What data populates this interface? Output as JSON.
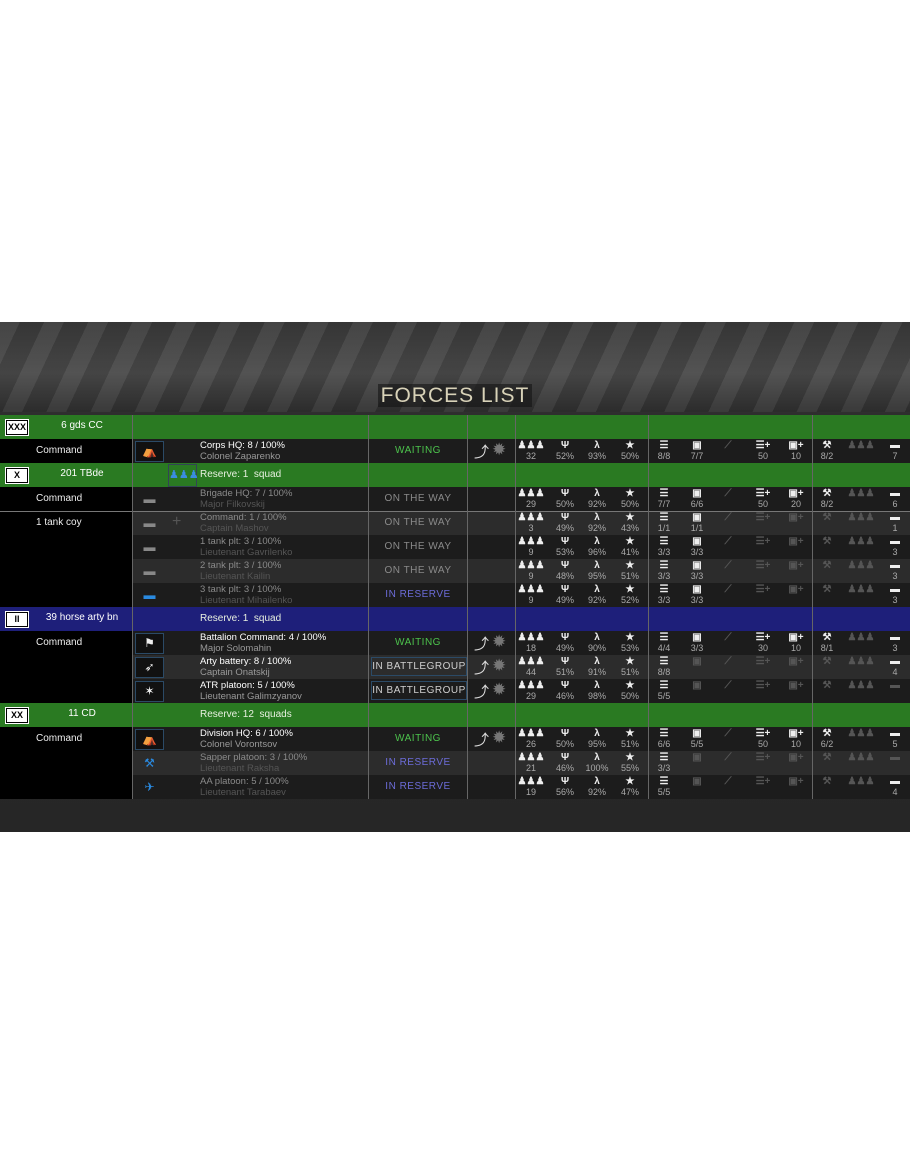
{
  "title": "FORCES LIST",
  "colors": {
    "green_header": "#2a7a22",
    "blue_header": "#1e1f7a",
    "waiting": "#4cc24c",
    "in_reserve": "#6c6cd8",
    "on_the_way": "#8a8a8a"
  },
  "stat_icons": [
    "men-icon",
    "morale-icon",
    "fatigue-icon",
    "experience-star-icon",
    "ammo-list-icon",
    "fuel-can-icon",
    "weapon-icon",
    "ammo-supply-icon",
    "fuel-supply-icon",
    "tools-icon",
    "reinforcement-men-icon",
    "truck-icon"
  ],
  "rows": [
    {
      "type": "header",
      "color": "green",
      "symbol": "XXX",
      "group": "6 gds CC",
      "reserve": ""
    },
    {
      "type": "unit",
      "left": "Command",
      "icon": "hq-tent-icon",
      "name": "Corps HQ: 8 / 100%",
      "officer": "Colonel Zaparenko",
      "status": "WAITING",
      "status_kind": "waiting",
      "actions": true,
      "dim": false,
      "stats": [
        "32",
        "52%",
        "93%",
        "50%",
        "8/8",
        "7/7",
        "",
        "50",
        "10",
        "8/2",
        "",
        "7"
      ]
    },
    {
      "type": "header",
      "color": "green",
      "symbol": "X",
      "group": "201 TBde",
      "reserve": "Reserve: 1  squad",
      "reserve_icon": true
    },
    {
      "type": "unit",
      "left": "Command",
      "icon": "tank-icon",
      "name": "Brigade HQ: 7 / 100%",
      "officer": "Major Filkovskij",
      "status": "ON THE WAY",
      "status_kind": "ontheway",
      "actions": false,
      "dim": true,
      "stats": [
        "29",
        "50%",
        "92%",
        "50%",
        "7/7",
        "6/6",
        "",
        "50",
        "20",
        "8/2",
        "",
        "6"
      ]
    },
    {
      "type": "unit",
      "left": "1 tank coy",
      "icon": "tank-icon",
      "plus": true,
      "name": "Command: 1 / 100%",
      "officer": "Captain Mashov",
      "status": "ON THE WAY",
      "status_kind": "ontheway",
      "actions": false,
      "dim": true,
      "stats": [
        "3",
        "49%",
        "92%",
        "43%",
        "1/1",
        "1/1",
        "",
        "",
        "",
        "",
        "",
        "1"
      ]
    },
    {
      "type": "unit",
      "left": "",
      "icon": "tank-icon",
      "name": "1 tank plt: 3 / 100%",
      "officer": "Lieutenant Gavrilenko",
      "status": "ON THE WAY",
      "status_kind": "ontheway",
      "actions": false,
      "dim": true,
      "stats": [
        "9",
        "53%",
        "96%",
        "41%",
        "3/3",
        "3/3",
        "",
        "",
        "",
        "",
        "",
        "3"
      ]
    },
    {
      "type": "unit",
      "left": "",
      "icon": "tank-icon",
      "name": "2 tank plt: 3 / 100%",
      "officer": "Lieutenant Kailin",
      "status": "ON THE WAY",
      "status_kind": "ontheway",
      "actions": false,
      "dim": true,
      "stats": [
        "9",
        "48%",
        "95%",
        "51%",
        "3/3",
        "3/3",
        "",
        "",
        "",
        "",
        "",
        "3"
      ]
    },
    {
      "type": "unit",
      "left": "",
      "icon": "tank-icon",
      "icon_blue": true,
      "name": "3 tank plt: 3 / 100%",
      "officer": "Lieutenant Mihailenko",
      "status": "IN RESERVE",
      "status_kind": "reserve",
      "actions": false,
      "dim": true,
      "stats": [
        "9",
        "49%",
        "92%",
        "52%",
        "3/3",
        "3/3",
        "",
        "",
        "",
        "",
        "",
        "3"
      ]
    },
    {
      "type": "header",
      "color": "blue",
      "symbol": "II",
      "group": "39 horse arty bn",
      "reserve": "Reserve: 1  squad"
    },
    {
      "type": "unit",
      "left": "Command",
      "icon": "command-flag-icon",
      "name": "Battalion Command: 4 / 100%",
      "officer": "Major Solomahin",
      "status": "WAITING",
      "status_kind": "waiting",
      "actions": true,
      "dim": false,
      "stats": [
        "18",
        "49%",
        "90%",
        "53%",
        "4/4",
        "3/3",
        "",
        "30",
        "10",
        "8/1",
        "",
        "3"
      ]
    },
    {
      "type": "unit",
      "left": "",
      "icon": "artillery-gun-icon",
      "name": "Arty battery: 8 / 100%",
      "officer": "Captain Onatskij",
      "status": "IN BATTLEGROUP",
      "status_kind": "battlegroup",
      "actions": true,
      "dim": false,
      "stats": [
        "44",
        "51%",
        "91%",
        "51%",
        "8/8",
        "",
        "",
        "",
        "",
        "",
        "",
        "4"
      ]
    },
    {
      "type": "unit",
      "left": "",
      "icon": "anti-tank-rifle-icon",
      "name": "ATR platoon: 5 / 100%",
      "officer": "Lieutenant Galimzyanov",
      "status": "IN BATTLEGROUP",
      "status_kind": "battlegroup",
      "actions": true,
      "dim": false,
      "stats": [
        "29",
        "46%",
        "98%",
        "50%",
        "5/5",
        "",
        "",
        "",
        "",
        "",
        "",
        ""
      ]
    },
    {
      "type": "header",
      "color": "green",
      "symbol": "XX",
      "group": "11 CD",
      "reserve": "Reserve: 12  squads"
    },
    {
      "type": "unit",
      "left": "Command",
      "icon": "hq-tent-icon",
      "name": "Division HQ: 6 / 100%",
      "officer": "Colonel Vorontsov",
      "status": "WAITING",
      "status_kind": "waiting",
      "actions": true,
      "dim": false,
      "stats": [
        "26",
        "50%",
        "95%",
        "51%",
        "6/6",
        "5/5",
        "",
        "50",
        "10",
        "6/2",
        "",
        "5"
      ]
    },
    {
      "type": "unit",
      "left": "",
      "icon": "sapper-icon",
      "icon_blue": true,
      "no_frame": true,
      "name": "Sapper platoon: 3 / 100%",
      "officer": "Lieutenant Raksha",
      "status": "IN RESERVE",
      "status_kind": "reserve",
      "actions": false,
      "dim": true,
      "stats": [
        "21",
        "46%",
        "100%",
        "55%",
        "3/3",
        "",
        "",
        "",
        "",
        "",
        "",
        ""
      ]
    },
    {
      "type": "unit",
      "left": "",
      "icon": "aa-gun-icon",
      "icon_blue": true,
      "no_frame": true,
      "name": "AA platoon: 5 / 100%",
      "officer": "Lieutenant Tarabaev",
      "status": "IN RESERVE",
      "status_kind": "reserve",
      "actions": false,
      "dim": true,
      "stats": [
        "19",
        "56%",
        "92%",
        "47%",
        "5/5",
        "",
        "",
        "",
        "",
        "",
        "",
        "4"
      ]
    }
  ]
}
